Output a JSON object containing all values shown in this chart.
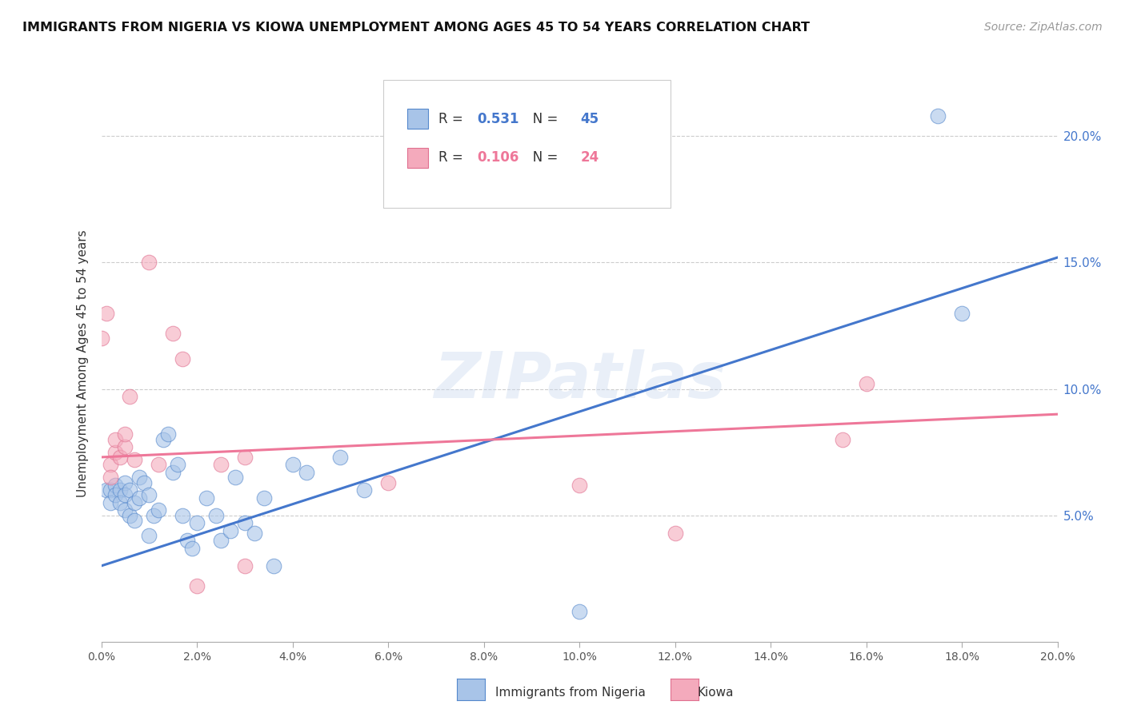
{
  "title": "IMMIGRANTS FROM NIGERIA VS KIOWA UNEMPLOYMENT AMONG AGES 45 TO 54 YEARS CORRELATION CHART",
  "source": "Source: ZipAtlas.com",
  "ylabel": "Unemployment Among Ages 45 to 54 years",
  "legend_label_blue": "Immigrants from Nigeria",
  "legend_label_pink": "Kiowa",
  "R_blue": "0.531",
  "N_blue": "45",
  "R_pink": "0.106",
  "N_pink": "24",
  "xlim": [
    0.0,
    0.2
  ],
  "ylim": [
    0.0,
    0.22
  ],
  "xticks": [
    0.0,
    0.02,
    0.04,
    0.06,
    0.08,
    0.1,
    0.12,
    0.14,
    0.16,
    0.18,
    0.2
  ],
  "yticks_right": [
    0.05,
    0.1,
    0.15,
    0.2
  ],
  "blue_fill": "#A8C4E8",
  "blue_edge": "#5588CC",
  "pink_fill": "#F4AABC",
  "pink_edge": "#E07090",
  "line_blue": "#4477CC",
  "line_pink": "#EE7799",
  "watermark": "ZIPatlas",
  "watermark_color": "#C8D8EE",
  "blue_scatter": [
    [
      0.001,
      0.06
    ],
    [
      0.002,
      0.06
    ],
    [
      0.002,
      0.055
    ],
    [
      0.003,
      0.062
    ],
    [
      0.003,
      0.058
    ],
    [
      0.004,
      0.06
    ],
    [
      0.004,
      0.055
    ],
    [
      0.005,
      0.063
    ],
    [
      0.005,
      0.058
    ],
    [
      0.005,
      0.052
    ],
    [
      0.006,
      0.06
    ],
    [
      0.006,
      0.05
    ],
    [
      0.007,
      0.048
    ],
    [
      0.007,
      0.055
    ],
    [
      0.008,
      0.065
    ],
    [
      0.008,
      0.057
    ],
    [
      0.009,
      0.063
    ],
    [
      0.01,
      0.042
    ],
    [
      0.01,
      0.058
    ],
    [
      0.011,
      0.05
    ],
    [
      0.012,
      0.052
    ],
    [
      0.013,
      0.08
    ],
    [
      0.014,
      0.082
    ],
    [
      0.015,
      0.067
    ],
    [
      0.016,
      0.07
    ],
    [
      0.017,
      0.05
    ],
    [
      0.018,
      0.04
    ],
    [
      0.019,
      0.037
    ],
    [
      0.02,
      0.047
    ],
    [
      0.022,
      0.057
    ],
    [
      0.024,
      0.05
    ],
    [
      0.025,
      0.04
    ],
    [
      0.027,
      0.044
    ],
    [
      0.028,
      0.065
    ],
    [
      0.03,
      0.047
    ],
    [
      0.032,
      0.043
    ],
    [
      0.034,
      0.057
    ],
    [
      0.036,
      0.03
    ],
    [
      0.04,
      0.07
    ],
    [
      0.043,
      0.067
    ],
    [
      0.05,
      0.073
    ],
    [
      0.055,
      0.06
    ],
    [
      0.1,
      0.012
    ],
    [
      0.175,
      0.208
    ],
    [
      0.18,
      0.13
    ]
  ],
  "pink_scatter": [
    [
      0.0,
      0.12
    ],
    [
      0.001,
      0.13
    ],
    [
      0.002,
      0.07
    ],
    [
      0.002,
      0.065
    ],
    [
      0.003,
      0.075
    ],
    [
      0.003,
      0.08
    ],
    [
      0.004,
      0.073
    ],
    [
      0.005,
      0.077
    ],
    [
      0.005,
      0.082
    ],
    [
      0.006,
      0.097
    ],
    [
      0.007,
      0.072
    ],
    [
      0.01,
      0.15
    ],
    [
      0.012,
      0.07
    ],
    [
      0.015,
      0.122
    ],
    [
      0.017,
      0.112
    ],
    [
      0.02,
      0.022
    ],
    [
      0.025,
      0.07
    ],
    [
      0.03,
      0.03
    ],
    [
      0.03,
      0.073
    ],
    [
      0.06,
      0.063
    ],
    [
      0.1,
      0.062
    ],
    [
      0.12,
      0.043
    ],
    [
      0.155,
      0.08
    ],
    [
      0.16,
      0.102
    ]
  ],
  "blue_line_x": [
    0.0,
    0.2
  ],
  "blue_line_y": [
    0.03,
    0.152
  ],
  "pink_line_x": [
    0.0,
    0.2
  ],
  "pink_line_y": [
    0.073,
    0.09
  ]
}
